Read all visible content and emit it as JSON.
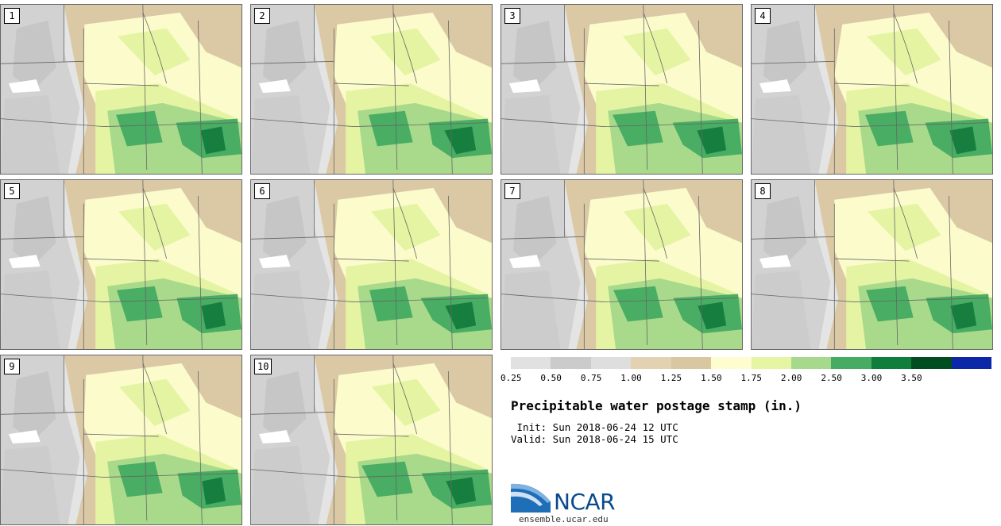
{
  "stamps": [
    {
      "label": "1"
    },
    {
      "label": "2"
    },
    {
      "label": "3"
    },
    {
      "label": "4"
    },
    {
      "label": "5"
    },
    {
      "label": "6"
    },
    {
      "label": "7"
    },
    {
      "label": "8"
    },
    {
      "label": "9"
    },
    {
      "label": "10"
    }
  ],
  "legend": {
    "ticks": [
      "0.25",
      "0.50",
      "0.75",
      "1.00",
      "1.25",
      "1.50",
      "1.75",
      "2.00",
      "2.50",
      "3.00",
      "3.50"
    ],
    "colors": [
      "#e1e1e1",
      "#cbcbcb",
      "#dedede",
      "#e2d2b2",
      "#d9c7a2",
      "#fdfdd0",
      "#e6f5a4",
      "#a7d98c",
      "#46ac62",
      "#0f7d3b",
      "#004d22",
      "#0a28a8"
    ]
  },
  "title": "Precipitable water postage stamp (in.)",
  "init_line": " Init: Sun 2018-06-24 12 UTC",
  "valid_line": "Valid: Sun 2018-06-24 15 UTC",
  "logo": {
    "name": "NCAR",
    "url": "ensemble.ucar.edu"
  }
}
